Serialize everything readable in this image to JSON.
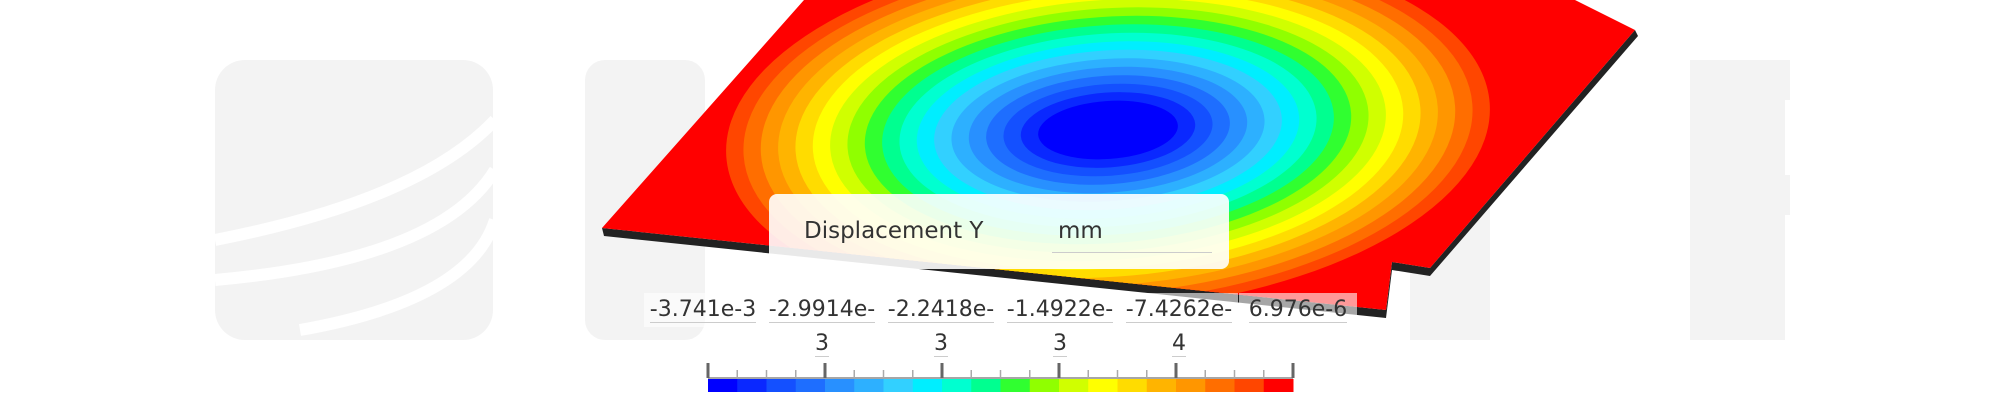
{
  "legend": {
    "title": "Displacement Y",
    "unit": "mm",
    "labels": [
      "-3.741e-3",
      "-2.9914e-3",
      "-2.2418e-3",
      "-1.4922e-3",
      "-7.4262e-4",
      "6.976e-6"
    ],
    "colors": [
      "#0000ff",
      "#0a28ff",
      "#1450ff",
      "#1e6eff",
      "#2890ff",
      "#2db0ff",
      "#32d0ff",
      "#00eeff",
      "#00ffd0",
      "#00ff90",
      "#30ff30",
      "#90ff00",
      "#d0ff00",
      "#ffff00",
      "#ffdc00",
      "#ffb400",
      "#ff9600",
      "#ff6e00",
      "#ff4600",
      "#ff0000"
    ]
  }
}
